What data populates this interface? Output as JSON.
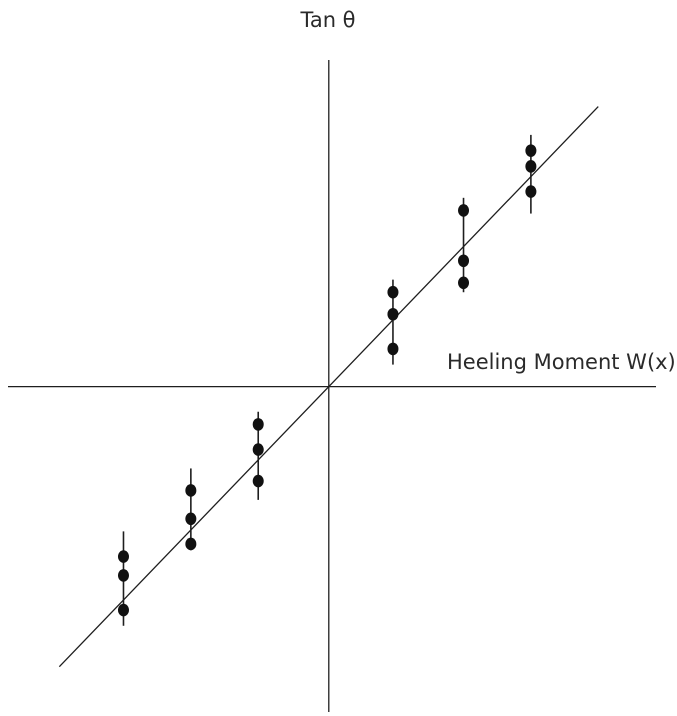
{
  "chart_data": {
    "type": "scatter",
    "title": "",
    "xlabel": "Heeling Moment W(x)",
    "ylabel": "Tan θ",
    "xlim": [
      -5.0,
      5.1
    ],
    "ylim": [
      -5.17,
      5.19
    ],
    "grid": false,
    "legend": "none",
    "fit_line": {
      "x": [
        -4.2,
        4.2
      ],
      "y": [
        -4.45,
        4.45
      ]
    },
    "groups": [
      {
        "x": -3.2,
        "y": [
          -2.7,
          -3.0,
          -3.55
        ],
        "err_range": [
          -2.3,
          -3.8
        ]
      },
      {
        "x": -2.15,
        "y": [
          -1.65,
          -2.1,
          -2.5
        ],
        "err_range": [
          -1.3,
          -2.6
        ]
      },
      {
        "x": -1.1,
        "y": [
          -0.6,
          -1.0,
          -1.5
        ],
        "err_range": [
          -0.4,
          -1.8
        ]
      },
      {
        "x": 1.0,
        "y": [
          1.5,
          1.15,
          0.6
        ],
        "err_range": [
          1.7,
          0.35
        ]
      },
      {
        "x": 2.1,
        "y": [
          2.8,
          2.0,
          1.65
        ],
        "err_range": [
          3.0,
          1.5
        ]
      },
      {
        "x": 3.15,
        "y": [
          3.75,
          3.5,
          3.1
        ],
        "err_range": [
          4.0,
          2.75
        ]
      }
    ]
  }
}
